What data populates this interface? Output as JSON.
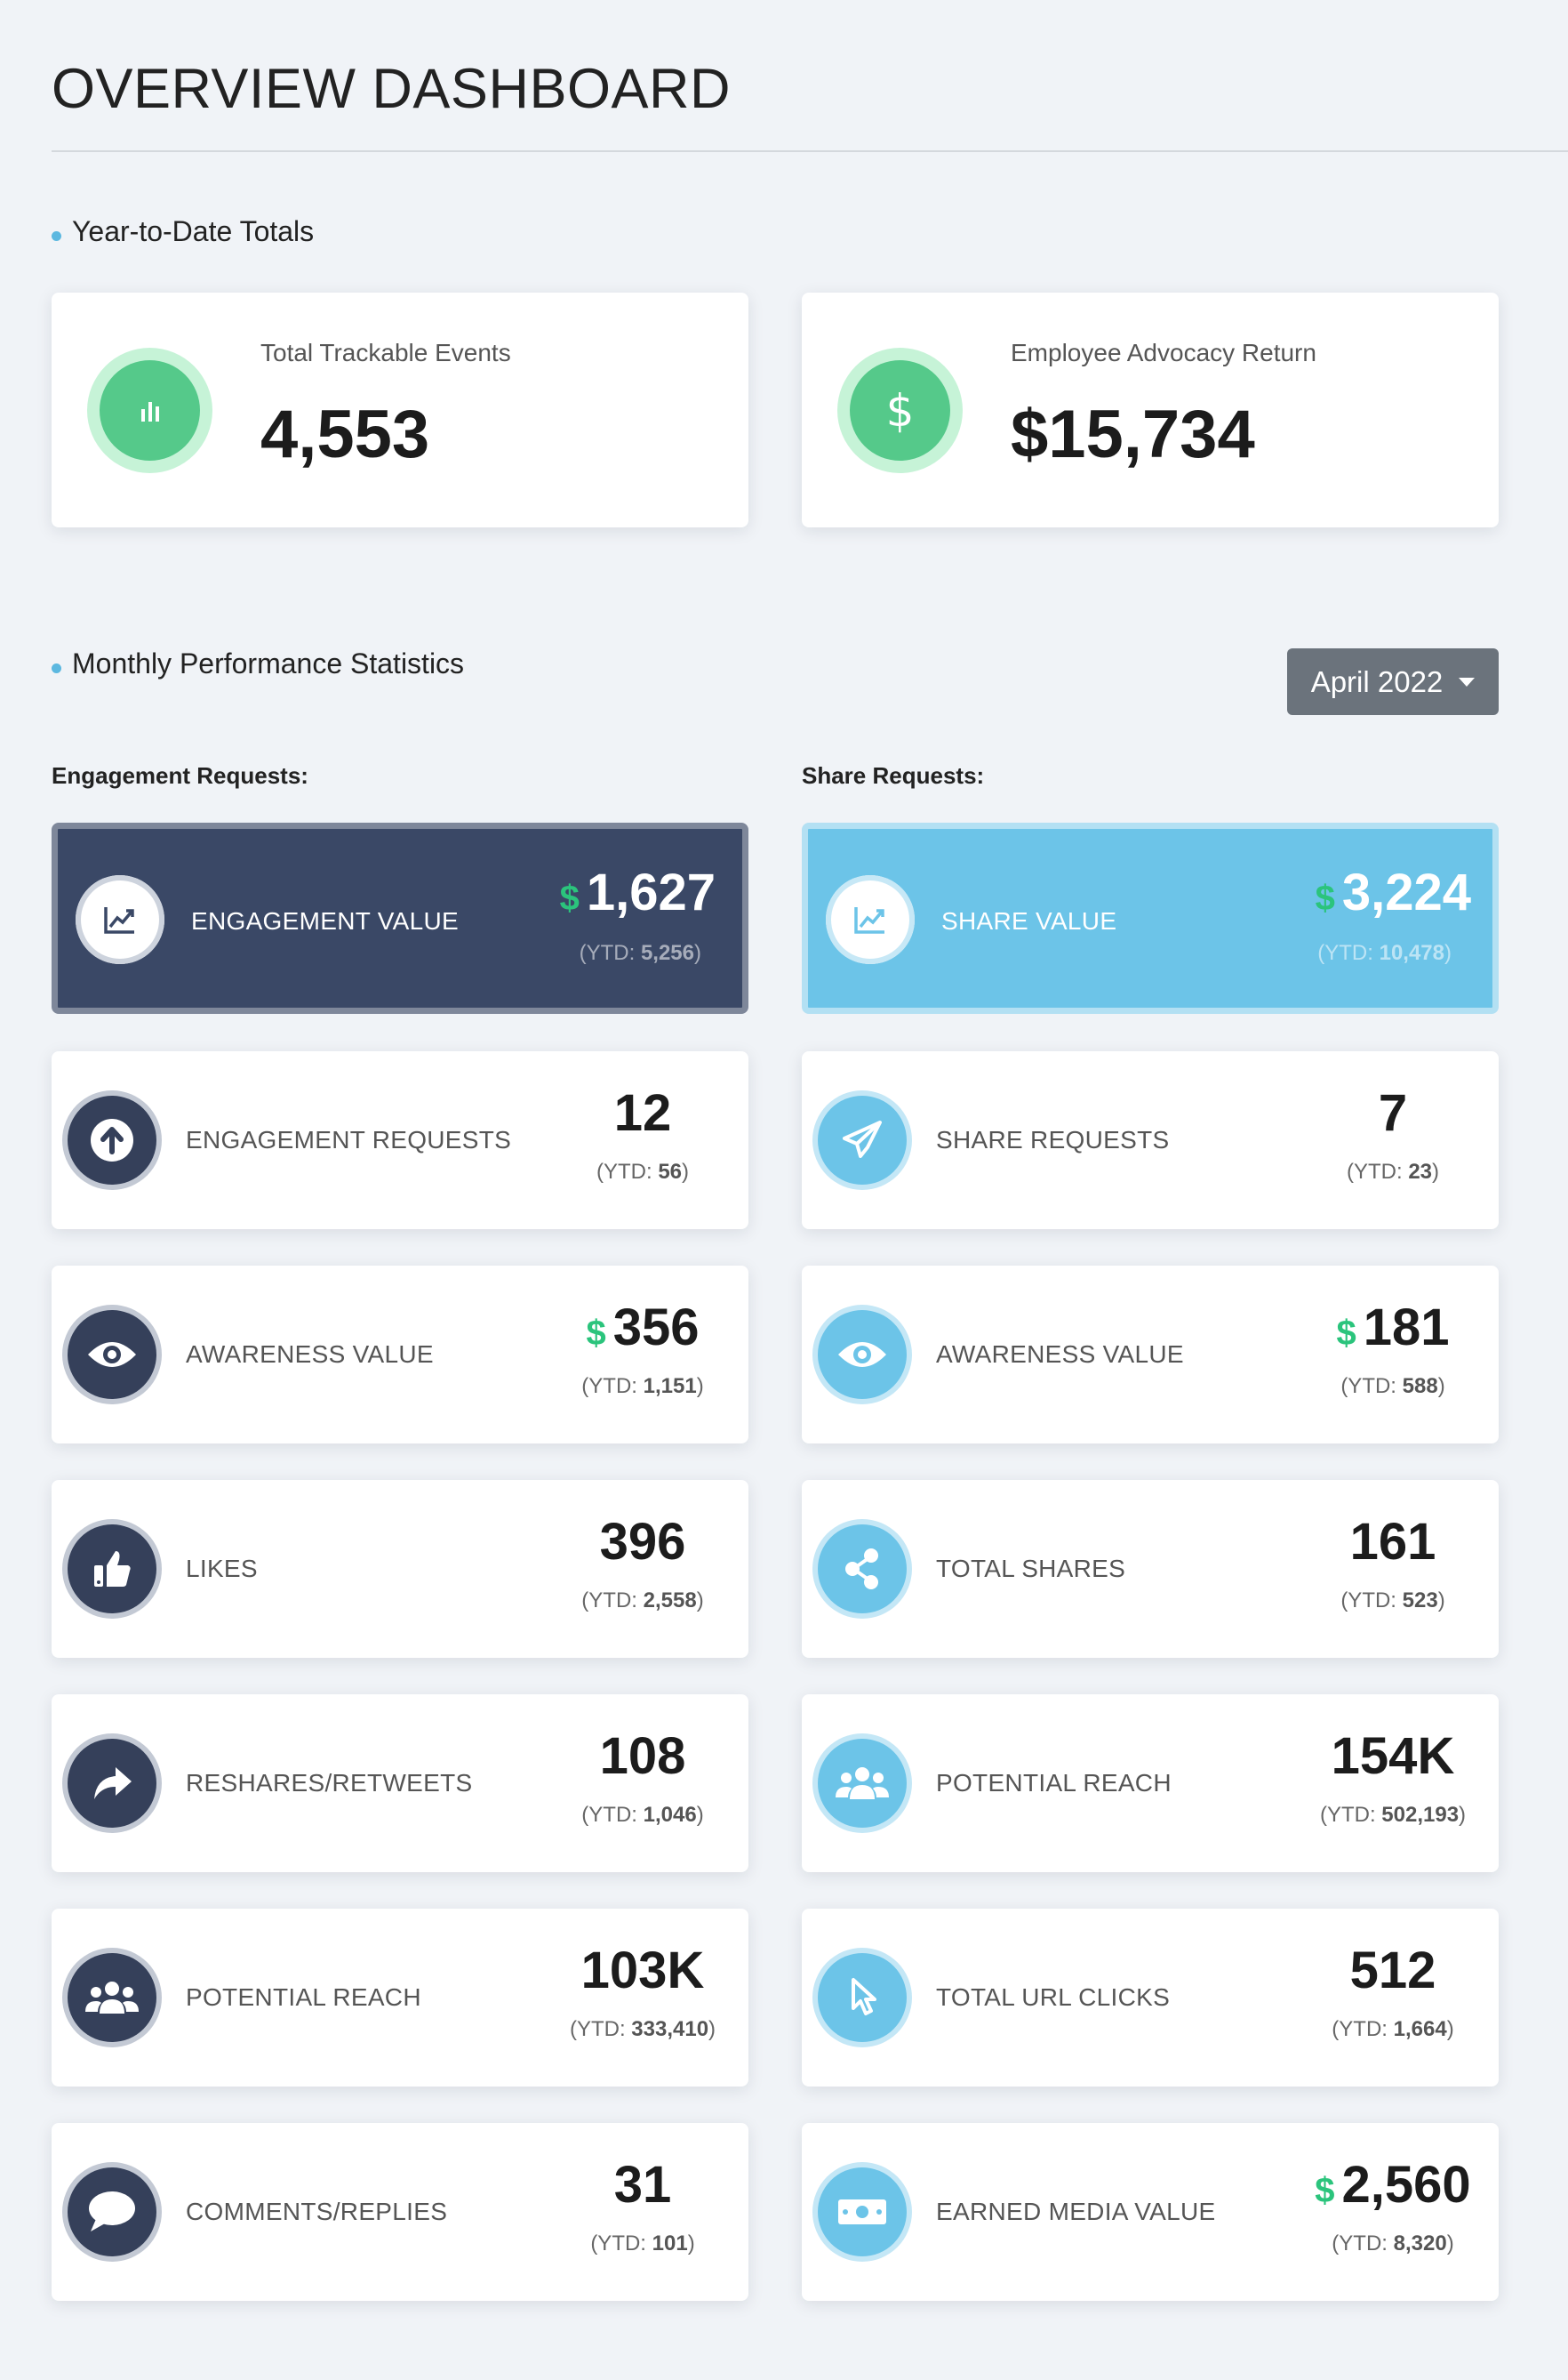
{
  "page": {
    "title": "OVERVIEW DASHBOARD"
  },
  "ytd_section": {
    "heading": "Year-to-Date Totals",
    "cards": [
      {
        "label": "Total Trackable Events",
        "value": "4,553",
        "icon": "bar-chart-icon"
      },
      {
        "label": "Employee Advocacy Return",
        "value": "$15,734",
        "icon": "dollar-icon"
      }
    ]
  },
  "monthly_section": {
    "heading": "Monthly Performance Statistics",
    "month_select": "April 2022"
  },
  "engagement": {
    "heading": "Engagement Requests:",
    "value_card": {
      "label": "ENGAGEMENT VALUE",
      "currency": "$",
      "amount": "1,627",
      "ytd_prefix": "(YTD: ",
      "ytd": "5,256",
      "ytd_suffix": ")"
    },
    "stats": [
      {
        "label": "ENGAGEMENT REQUESTS",
        "value": "12",
        "ytd": "56",
        "icon": "arrow-up-circle-icon"
      },
      {
        "label": "AWARENESS VALUE",
        "currency": "$",
        "value": "356",
        "ytd": "1,151",
        "icon": "eye-icon"
      },
      {
        "label": "LIKES",
        "value": "396",
        "ytd": "2,558",
        "icon": "thumbs-up-icon"
      },
      {
        "label": "RESHARES/RETWEETS",
        "value": "108",
        "ytd": "1,046",
        "icon": "share-arrow-icon"
      },
      {
        "label": "POTENTIAL REACH",
        "value": "103K",
        "ytd": "333,410",
        "icon": "users-icon"
      },
      {
        "label": "COMMENTS/REPLIES",
        "value": "31",
        "ytd": "101",
        "icon": "comment-icon"
      }
    ]
  },
  "share": {
    "heading": "Share Requests:",
    "value_card": {
      "label": "SHARE VALUE",
      "currency": "$",
      "amount": "3,224",
      "ytd_prefix": "(YTD: ",
      "ytd": "10,478",
      "ytd_suffix": ")"
    },
    "stats": [
      {
        "label": "SHARE REQUESTS",
        "value": "7",
        "ytd": "23",
        "icon": "paper-plane-icon"
      },
      {
        "label": "AWARENESS VALUE",
        "currency": "$",
        "value": "181",
        "ytd": "588",
        "icon": "eye-icon"
      },
      {
        "label": "TOTAL SHARES",
        "value": "161",
        "ytd": "523",
        "icon": "share-nodes-icon"
      },
      {
        "label": "POTENTIAL REACH",
        "value": "154K",
        "ytd": "502,193",
        "icon": "users-icon"
      },
      {
        "label": "TOTAL URL CLICKS",
        "value": "512",
        "ytd": "1,664",
        "icon": "pointer-icon"
      },
      {
        "label": "EARNED MEDIA VALUE",
        "currency": "$",
        "value": "2,560",
        "ytd": "8,320",
        "icon": "money-bill-icon"
      }
    ]
  },
  "ytd_text": {
    "prefix": "(YTD: ",
    "suffix": ")"
  },
  "colors": {
    "background": "#f0f3f7",
    "navy": "#3a4866",
    "sky": "#6cc4e8",
    "green": "#55c98a",
    "dollar_green": "#2bc47c",
    "select_gray": "#6b737c"
  }
}
